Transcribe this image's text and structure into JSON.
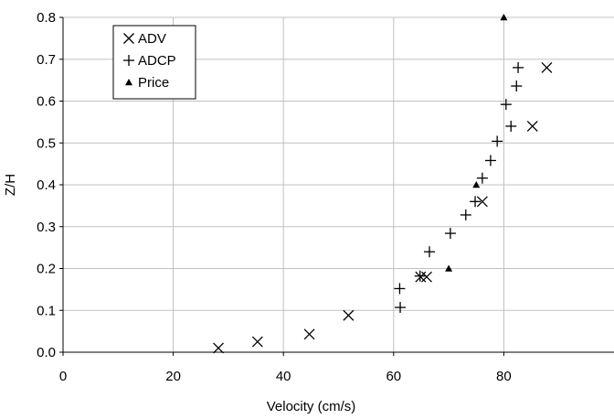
{
  "chart_data": {
    "type": "scatter",
    "title": "",
    "xlabel": "Velocity (cm/s)",
    "ylabel": "Z/H",
    "xlim": [
      0,
      100
    ],
    "ylim": [
      0,
      0.8
    ],
    "xticks": [
      0,
      20,
      40,
      60,
      80
    ],
    "xtick_labels": [
      "0",
      "20",
      "40",
      "60",
      "80"
    ],
    "yticks": [
      0.0,
      0.1,
      0.2,
      0.3,
      0.4,
      0.5,
      0.6,
      0.7,
      0.8
    ],
    "ytick_labels": [
      "0.0",
      "0.1",
      "0.2",
      "0.3",
      "0.4",
      "0.5",
      "0.6",
      "0.7",
      "0.8"
    ],
    "grid": true,
    "legend_position": "top-left",
    "series": [
      {
        "name": "ADV",
        "marker": "x",
        "points": [
          {
            "x": 28.2,
            "y": 0.01
          },
          {
            "x": 35.3,
            "y": 0.025
          },
          {
            "x": 44.7,
            "y": 0.043
          },
          {
            "x": 51.8,
            "y": 0.088
          },
          {
            "x": 64.9,
            "y": 0.18
          },
          {
            "x": 66.0,
            "y": 0.18
          },
          {
            "x": 76.1,
            "y": 0.36
          },
          {
            "x": 85.2,
            "y": 0.54
          },
          {
            "x": 87.8,
            "y": 0.68
          }
        ]
      },
      {
        "name": "ADCP",
        "marker": "plus",
        "points": [
          {
            "x": 61.2,
            "y": 0.107
          },
          {
            "x": 61.1,
            "y": 0.152
          },
          {
            "x": 64.8,
            "y": 0.182
          },
          {
            "x": 66.5,
            "y": 0.24
          },
          {
            "x": 70.3,
            "y": 0.284
          },
          {
            "x": 73.1,
            "y": 0.328
          },
          {
            "x": 74.8,
            "y": 0.36
          },
          {
            "x": 76.1,
            "y": 0.416
          },
          {
            "x": 77.6,
            "y": 0.458
          },
          {
            "x": 78.8,
            "y": 0.504
          },
          {
            "x": 80.4,
            "y": 0.592
          },
          {
            "x": 81.3,
            "y": 0.54
          },
          {
            "x": 82.3,
            "y": 0.636
          },
          {
            "x": 82.6,
            "y": 0.68
          }
        ]
      },
      {
        "name": "Price",
        "marker": "triangle",
        "points": [
          {
            "x": 70.0,
            "y": 0.2
          },
          {
            "x": 75.0,
            "y": 0.4
          },
          {
            "x": 80.0,
            "y": 0.8
          }
        ]
      }
    ]
  }
}
